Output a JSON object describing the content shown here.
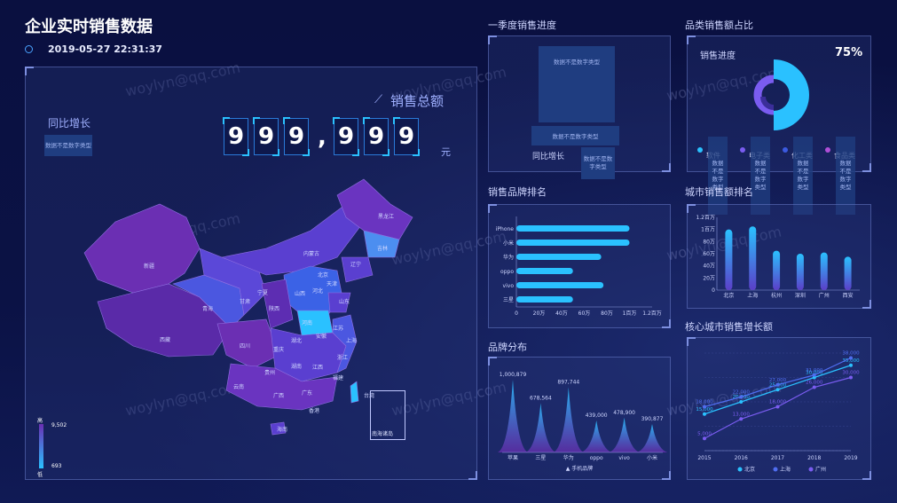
{
  "header": {
    "title": "企业实时销售数据",
    "datetime": "2019-05-27 22:31:37",
    "icon": "clock-icon"
  },
  "map_panel": {
    "total_label": "销售总额",
    "digits": [
      "9",
      "9",
      "9",
      ",",
      "9",
      "9",
      "9"
    ],
    "unit": "元",
    "yoy_label": "同比增长",
    "nodata": "数据不是数字类型",
    "legend_high": "高",
    "legend_low": "低",
    "legend_max": "9,502",
    "legend_min": "693",
    "south_sea": "南海诸岛",
    "provinces": [
      "新疆",
      "西藏",
      "青海",
      "甘肃",
      "内蒙古",
      "黑龙江",
      "吉林",
      "辽宁",
      "北京",
      "天津",
      "河北",
      "山西",
      "山东",
      "宁夏",
      "陕西",
      "河南",
      "江苏",
      "上海",
      "安徽",
      "湖北",
      "四川",
      "重庆",
      "浙江",
      "湖南",
      "江西",
      "贵州",
      "福建",
      "云南",
      "广西",
      "广东",
      "香港",
      "台湾",
      "海南"
    ]
  },
  "quarter_panel": {
    "title": "一季度销售进度",
    "nodata": "数据不是数字类型",
    "label": "同比增长"
  },
  "category_panel": {
    "title": "品类销售额占比",
    "label": "销售进度",
    "percent": "75%",
    "progress": 0.75,
    "nodata": "数据不是数字类型",
    "legend": [
      {
        "name": "软件",
        "color": "#2ac1ff"
      },
      {
        "name": "电子类",
        "color": "#7a5cf0"
      },
      {
        "name": "化工类",
        "color": "#3b5ae0"
      },
      {
        "name": "食品类",
        "color": "#b04fd8"
      }
    ]
  },
  "brand_rank": {
    "title": "销售品牌排名",
    "chart_data": {
      "type": "bar",
      "orientation": "horizontal",
      "categories": [
        "iPhone",
        "小米",
        "华为",
        "oppo",
        "vivo",
        "三星"
      ],
      "values": [
        10000,
        10000,
        7500,
        5000,
        7700,
        5000
      ],
      "xlim": [
        0,
        12000
      ],
      "ticks": [
        "0",
        "20万",
        "40万",
        "60万",
        "80万",
        "1百万",
        "1.2百万"
      ]
    }
  },
  "city_rank": {
    "title": "城市销售额排名",
    "chart_data": {
      "type": "bar",
      "categories": [
        "北京",
        "上海",
        "杭州",
        "深圳",
        "广州",
        "西安"
      ],
      "values": [
        100,
        105,
        65,
        60,
        62,
        55
      ],
      "ylim": [
        0,
        120
      ],
      "ticks": [
        "0",
        "20万",
        "40万",
        "60万",
        "80万",
        "1百万",
        "1.2百万"
      ]
    }
  },
  "brand_dist": {
    "title": "品牌分布",
    "legend": "手机品牌",
    "chart_data": {
      "type": "area",
      "categories": [
        "苹果",
        "三星",
        "华为",
        "oppo",
        "vivo",
        "小米"
      ],
      "values": [
        1000879,
        678564,
        897744,
        439000,
        478900,
        390877
      ],
      "labels": [
        "1,000,879",
        "678,564",
        "897,744",
        "439,000",
        "478,900",
        "390,877"
      ]
    }
  },
  "city_growth": {
    "title": "核心城市销售增长额",
    "chart_data": {
      "type": "line",
      "x": [
        "2015",
        "2016",
        "2017",
        "2018",
        "2019"
      ],
      "ylim": [
        0,
        40000
      ],
      "series": [
        {
          "name": "北京",
          "color": "#2ac1ff",
          "values": [
            15000,
            20000,
            25000,
            30000,
            35000
          ],
          "labels": [
            "15,000",
            "20,000",
            "25,000",
            "30,000",
            "35,000"
          ]
        },
        {
          "name": "上海",
          "color": "#4f6df0",
          "values": [
            18000,
            22000,
            27000,
            31000,
            38000
          ],
          "labels": [
            "18,000",
            "22,000",
            "27,000",
            "31,000",
            "38,000"
          ]
        },
        {
          "name": "广州",
          "color": "#7a5cf0",
          "values": [
            5000,
            13000,
            18000,
            26000,
            30000
          ],
          "labels": [
            "5,000",
            "13,000",
            "18,000",
            "26,000",
            "30,000"
          ]
        }
      ]
    }
  },
  "watermark": "woylyn@qq.com"
}
